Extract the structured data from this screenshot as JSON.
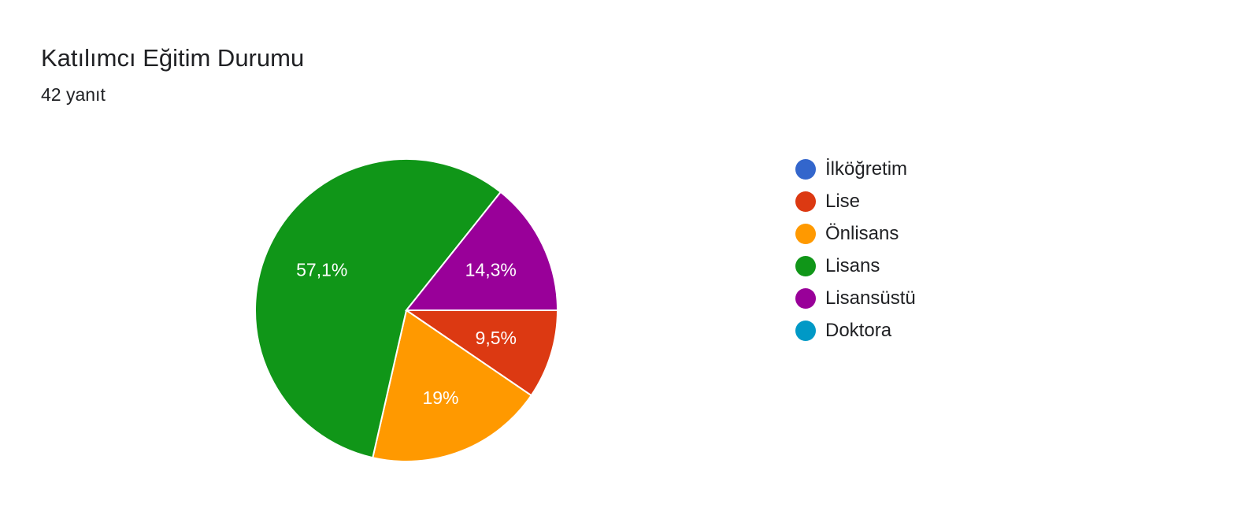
{
  "chart_data": {
    "type": "pie",
    "title": "Katılımcı Eğitim Durumu",
    "subtitle": "42 yanıt",
    "slices": [
      {
        "label": "İlköğretim",
        "value": 0,
        "pct_label": "",
        "color": "#3366cc"
      },
      {
        "label": "Lise",
        "value": 4,
        "pct_label": "9,5%",
        "color": "#dc3912"
      },
      {
        "label": "Önlisans",
        "value": 8,
        "pct_label": "19%",
        "color": "#ff9900"
      },
      {
        "label": "Lisans",
        "value": 24,
        "pct_label": "57,1%",
        "color": "#109618"
      },
      {
        "label": "Lisansüstü",
        "value": 6,
        "pct_label": "14,3%",
        "color": "#990099"
      },
      {
        "label": "Doktora",
        "value": 0,
        "pct_label": "",
        "color": "#0099c6"
      }
    ],
    "legend": "right"
  }
}
